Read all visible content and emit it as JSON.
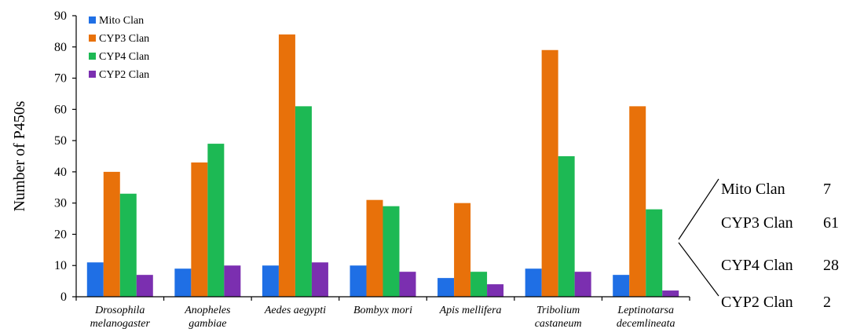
{
  "chart_data": {
    "type": "bar",
    "ylabel": "Number of P450s",
    "xlabel": "",
    "ylim": [
      0,
      90
    ],
    "yticks": [
      0,
      10,
      20,
      30,
      40,
      50,
      60,
      70,
      80,
      90
    ],
    "grid": false,
    "legend_position": "top-left",
    "categories": [
      [
        "Drosophila",
        "melanogaster"
      ],
      [
        "Anopheles",
        "gambiae"
      ],
      [
        "Aedes aegypti"
      ],
      [
        "Bombyx mori"
      ],
      [
        "Apis mellifera"
      ],
      [
        "Tribolium",
        "castaneum"
      ],
      [
        "Leptinotarsa",
        "decemlineata"
      ]
    ],
    "series": [
      {
        "name": "Mito Clan",
        "color": "#1f6fe5",
        "values": [
          11,
          9,
          10,
          10,
          6,
          9,
          7
        ]
      },
      {
        "name": "CYP3 Clan",
        "color": "#e8710a",
        "values": [
          40,
          43,
          84,
          31,
          30,
          79,
          61
        ]
      },
      {
        "name": "CYP4 Clan",
        "color": "#1db954",
        "values": [
          33,
          49,
          61,
          29,
          8,
          45,
          28
        ]
      },
      {
        "name": "CYP2 Clan",
        "color": "#7b2fb0",
        "values": [
          7,
          10,
          11,
          8,
          4,
          8,
          2
        ]
      }
    ],
    "annotation": {
      "category_index": 6,
      "items": [
        {
          "label": "Mito Clan",
          "value": "7"
        },
        {
          "label": "CYP3 Clan",
          "value": "61"
        },
        {
          "label": "CYP4 Clan",
          "value": "28"
        },
        {
          "label": "CYP2 Clan",
          "value": "2"
        }
      ]
    }
  }
}
